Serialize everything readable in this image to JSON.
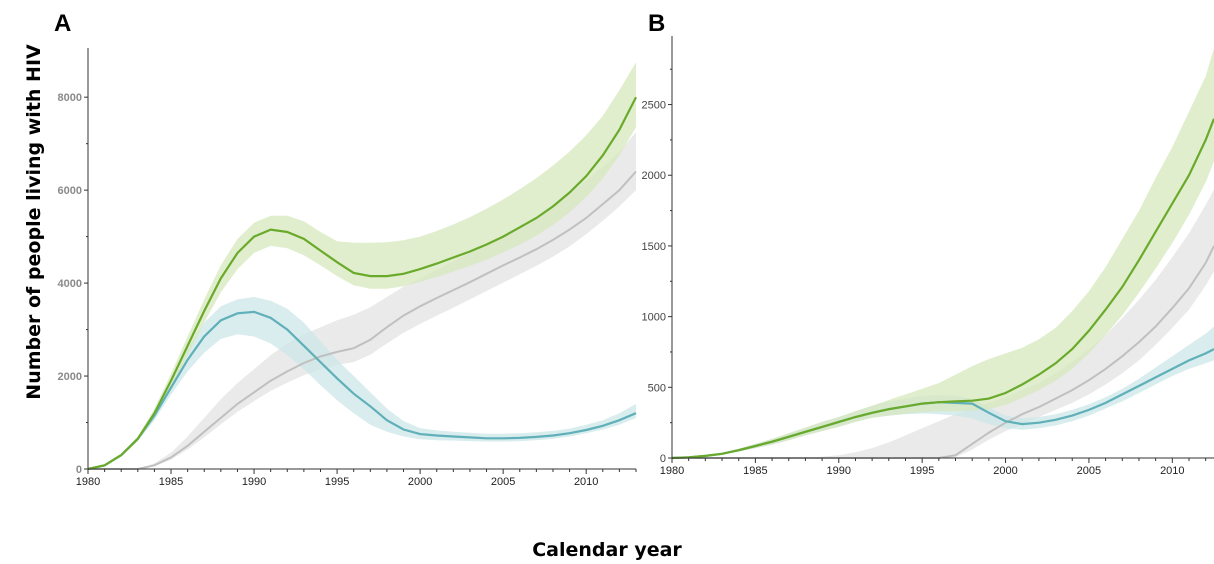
{
  "figure": {
    "ylabel": "Number of people living with HIV",
    "xlabel": "Calendar year"
  },
  "colors": {
    "green": "#6aaa2a",
    "green_band": "#d6e8be",
    "teal": "#5fb0b8",
    "teal_band": "#cce6e8",
    "grey": "#c0c0c0",
    "grey_band": "#e6e6e6"
  },
  "chart_data": [
    {
      "panel": "A",
      "type": "line",
      "xlim": [
        1980,
        2013
      ],
      "ylim": [
        0,
        8800
      ],
      "x_ticks": [
        "1980",
        "1985",
        "1990",
        "1995",
        "2000",
        "2005",
        "2010"
      ],
      "y_ticks": [
        "0",
        "2000",
        "4000",
        "6000",
        "8000"
      ],
      "x": [
        1980,
        1981,
        1982,
        1983,
        1984,
        1985,
        1986,
        1987,
        1988,
        1989,
        1990,
        1991,
        1992,
        1993,
        1994,
        1995,
        1996,
        1997,
        1998,
        1999,
        2000,
        2001,
        2002,
        2003,
        2004,
        2005,
        2006,
        2007,
        2008,
        2009,
        2010,
        2011,
        2012,
        2013
      ],
      "series": [
        {
          "key": "green",
          "values": [
            0,
            80,
            300,
            650,
            1200,
            1900,
            2650,
            3400,
            4100,
            4650,
            5000,
            5150,
            5100,
            4950,
            4700,
            4450,
            4220,
            4150,
            4150,
            4200,
            4300,
            4420,
            4550,
            4680,
            4830,
            5000,
            5200,
            5400,
            5650,
            5950,
            6300,
            6750,
            7300,
            8000
          ],
          "lower": [
            0,
            70,
            270,
            600,
            1100,
            1750,
            2450,
            3150,
            3800,
            4300,
            4650,
            4800,
            4750,
            4600,
            4380,
            4150,
            3950,
            3880,
            3880,
            3930,
            4030,
            4130,
            4250,
            4370,
            4500,
            4660,
            4830,
            5020,
            5250,
            5520,
            5850,
            6250,
            6750,
            7350
          ],
          "upper": [
            0,
            90,
            330,
            700,
            1300,
            2050,
            2850,
            3650,
            4380,
            4950,
            5300,
            5450,
            5450,
            5330,
            5100,
            4900,
            4870,
            4870,
            4880,
            4920,
            5000,
            5120,
            5260,
            5420,
            5600,
            5800,
            6020,
            6260,
            6530,
            6830,
            7180,
            7600,
            8150,
            8750
          ]
        },
        {
          "key": "teal",
          "values": [
            0,
            80,
            300,
            650,
            1150,
            1750,
            2350,
            2850,
            3200,
            3350,
            3380,
            3250,
            3000,
            2650,
            2300,
            1950,
            1620,
            1350,
            1050,
            850,
            750,
            720,
            700,
            680,
            660,
            660,
            670,
            690,
            720,
            770,
            840,
            930,
            1050,
            1200
          ],
          "lower": [
            0,
            70,
            270,
            600,
            1050,
            1600,
            2100,
            2500,
            2800,
            2900,
            2850,
            2700,
            2450,
            2150,
            1800,
            1480,
            1200,
            950,
            800,
            700,
            640,
            620,
            610,
            600,
            590,
            590,
            600,
            620,
            650,
            700,
            770,
            850,
            950,
            1100
          ],
          "upper": [
            0,
            90,
            330,
            700,
            1250,
            1900,
            2600,
            3150,
            3500,
            3650,
            3700,
            3620,
            3450,
            3150,
            2750,
            2350,
            2000,
            1650,
            1300,
            1030,
            880,
            830,
            800,
            780,
            760,
            760,
            770,
            790,
            820,
            870,
            950,
            1050,
            1200,
            1400
          ]
        },
        {
          "key": "grey",
          "values": [
            0,
            0,
            0,
            0,
            80,
            250,
            500,
            800,
            1100,
            1400,
            1650,
            1900,
            2100,
            2280,
            2420,
            2520,
            2600,
            2780,
            3050,
            3300,
            3500,
            3680,
            3850,
            4020,
            4200,
            4380,
            4550,
            4730,
            4930,
            5150,
            5400,
            5700,
            6000,
            6400
          ],
          "lower": [
            0,
            0,
            0,
            0,
            60,
            200,
            420,
            680,
            960,
            1230,
            1460,
            1680,
            1860,
            2020,
            2140,
            2240,
            2300,
            2460,
            2700,
            2930,
            3120,
            3300,
            3470,
            3650,
            3830,
            4010,
            4190,
            4370,
            4570,
            4790,
            5050,
            5340,
            5650,
            6000
          ],
          "upper": [
            0,
            0,
            0,
            0,
            120,
            350,
            700,
            1100,
            1500,
            1850,
            2150,
            2450,
            2700,
            2900,
            3050,
            3200,
            3320,
            3480,
            3700,
            3920,
            4100,
            4280,
            4470,
            4650,
            4840,
            5030,
            5230,
            5430,
            5660,
            5920,
            6200,
            6500,
            6820,
            7250
          ]
        }
      ]
    },
    {
      "panel": "B",
      "type": "line",
      "xlim": [
        1980,
        2012.5
      ],
      "ylim": [
        0,
        2900
      ],
      "x_ticks": [
        "1980",
        "1985",
        "1990",
        "1995",
        "2000",
        "2005",
        "2010"
      ],
      "y_ticks": [
        "0",
        "500",
        "1000",
        "1500",
        "2000",
        "2500"
      ],
      "x": [
        1980,
        1981,
        1982,
        1983,
        1984,
        1985,
        1986,
        1987,
        1988,
        1989,
        1990,
        1991,
        1992,
        1993,
        1994,
        1995,
        1996,
        1997,
        1998,
        1999,
        2000,
        2001,
        2002,
        2003,
        2004,
        2005,
        2006,
        2007,
        2008,
        2009,
        2010,
        2011,
        2012,
        2012.5
      ],
      "series": [
        {
          "key": "green",
          "values": [
            0,
            5,
            15,
            30,
            55,
            85,
            115,
            150,
            185,
            220,
            255,
            290,
            320,
            345,
            365,
            385,
            395,
            400,
            405,
            420,
            460,
            520,
            590,
            670,
            770,
            900,
            1050,
            1210,
            1400,
            1600,
            1800,
            2000,
            2250,
            2400
          ],
          "lower": [
            0,
            4,
            12,
            25,
            45,
            70,
            95,
            125,
            160,
            190,
            220,
            255,
            285,
            300,
            315,
            325,
            330,
            330,
            335,
            345,
            375,
            425,
            480,
            545,
            630,
            740,
            870,
            1010,
            1170,
            1340,
            1520,
            1720,
            1950,
            2100
          ],
          "upper": [
            0,
            6,
            18,
            36,
            65,
            100,
            135,
            175,
            215,
            255,
            290,
            330,
            370,
            410,
            450,
            490,
            530,
            590,
            650,
            700,
            740,
            780,
            840,
            920,
            1040,
            1180,
            1350,
            1550,
            1750,
            1980,
            2200,
            2450,
            2700,
            2900
          ]
        },
        {
          "key": "teal",
          "values": [
            0,
            5,
            15,
            30,
            55,
            85,
            115,
            150,
            185,
            220,
            255,
            290,
            320,
            345,
            365,
            385,
            395,
            390,
            385,
            320,
            260,
            240,
            250,
            270,
            300,
            340,
            390,
            450,
            510,
            570,
            630,
            690,
            740,
            770
          ],
          "lower": [
            0,
            4,
            12,
            25,
            45,
            70,
            95,
            125,
            160,
            190,
            220,
            255,
            285,
            300,
            310,
            315,
            310,
            300,
            280,
            240,
            210,
            200,
            210,
            230,
            260,
            300,
            350,
            400,
            460,
            520,
            580,
            630,
            670,
            690
          ],
          "upper": [
            0,
            6,
            18,
            36,
            65,
            100,
            135,
            175,
            215,
            255,
            290,
            330,
            370,
            400,
            420,
            440,
            445,
            440,
            420,
            360,
            300,
            280,
            290,
            310,
            340,
            380,
            430,
            490,
            560,
            640,
            720,
            800,
            880,
            930
          ]
        },
        {
          "key": "grey",
          "values": [
            0,
            0,
            0,
            0,
            0,
            0,
            0,
            0,
            0,
            0,
            0,
            0,
            0,
            0,
            0,
            0,
            0,
            20,
            100,
            180,
            250,
            310,
            360,
            420,
            480,
            550,
            630,
            720,
            820,
            930,
            1060,
            1200,
            1380,
            1500
          ],
          "lower": [
            0,
            0,
            0,
            0,
            0,
            0,
            0,
            0,
            0,
            0,
            0,
            0,
            0,
            0,
            0,
            0,
            0,
            5,
            60,
            130,
            190,
            240,
            290,
            340,
            390,
            450,
            520,
            600,
            690,
            800,
            920,
            1050,
            1220,
            1320
          ],
          "upper": [
            0,
            0,
            0,
            0,
            0,
            0,
            0,
            0,
            0,
            10,
            20,
            40,
            70,
            110,
            160,
            210,
            260,
            310,
            350,
            390,
            430,
            480,
            530,
            600,
            680,
            770,
            870,
            990,
            1120,
            1260,
            1420,
            1590,
            1790,
            1900
          ]
        }
      ]
    }
  ]
}
